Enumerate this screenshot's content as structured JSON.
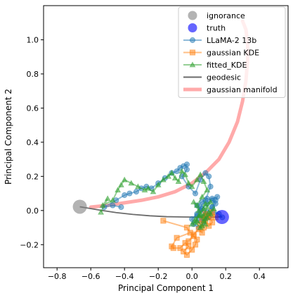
{
  "chart_data": {
    "type": "line",
    "xlabel": "Principal Component 1",
    "ylabel": "Principal Component 2",
    "xlim": [
      -0.88,
      0.57
    ],
    "ylim": [
      -0.335,
      1.2
    ],
    "xticks": [
      -0.8,
      -0.6,
      -0.4,
      -0.2,
      0.0,
      0.2,
      0.4
    ],
    "xtick_labels": [
      "−0.8",
      "−0.6",
      "−0.4",
      "−0.2",
      "0.0",
      "0.2",
      "0.4"
    ],
    "yticks": [
      -0.2,
      0.0,
      0.2,
      0.4,
      0.6,
      0.8,
      1.0
    ],
    "ytick_labels": [
      "−0.2",
      "0.0",
      "0.2",
      "0.4",
      "0.6",
      "0.8",
      "1.0"
    ],
    "legend_position": "top-right",
    "grid": false,
    "points": [
      {
        "name": "ignorance",
        "x": -0.665,
        "y": 0.022,
        "color": "#808080"
      },
      {
        "name": "truth",
        "x": 0.178,
        "y": -0.038,
        "color": "#0000ff"
      }
    ],
    "series": [
      {
        "name": "LLaMA-2 13b",
        "color": "#1f77b4",
        "marker": "circle",
        "x": [
          -0.42,
          -0.47,
          -0.52,
          -0.45,
          -0.4,
          -0.37,
          -0.33,
          -0.3,
          -0.27,
          -0.24,
          -0.2,
          -0.16,
          -0.12,
          -0.09,
          -0.07,
          -0.05,
          -0.03,
          -0.03,
          -0.06,
          -0.02,
          0.02,
          0.05,
          0.08,
          0.1,
          0.11,
          0.08,
          0.05,
          0.03,
          0.07,
          0.1,
          0.12,
          0.14,
          0.15,
          0.12,
          0.09,
          0.06,
          0.03,
          0.0,
          0.01,
          0.04,
          0.07,
          0.1,
          0.08,
          0.05,
          0.03,
          0.06,
          0.09,
          0.12,
          0.14,
          0.12,
          0.09,
          0.06,
          0.04,
          0.07,
          0.1,
          0.13,
          0.16,
          0.18
        ],
        "y": [
          0.02,
          0.03,
          0.02,
          0.06,
          0.09,
          0.1,
          0.11,
          0.13,
          0.14,
          0.13,
          0.16,
          0.19,
          0.22,
          0.23,
          0.25,
          0.26,
          0.27,
          0.24,
          0.2,
          0.14,
          0.1,
          0.18,
          0.22,
          0.2,
          0.14,
          0.06,
          0.02,
          -0.03,
          -0.06,
          -0.04,
          0.02,
          0.06,
          0.08,
          0.07,
          0.04,
          0.01,
          -0.02,
          -0.05,
          -0.08,
          -0.1,
          -0.07,
          -0.04,
          -0.02,
          0.0,
          0.03,
          0.05,
          0.07,
          0.06,
          0.04,
          0.02,
          -0.01,
          -0.04,
          -0.06,
          -0.05,
          -0.03,
          -0.01,
          -0.02,
          -0.04
        ]
      },
      {
        "name": "gaussian KDE",
        "color": "#ff7f0e",
        "marker": "square",
        "x": [
          -0.17,
          -0.03,
          -0.01,
          -0.09,
          -0.12,
          -0.11,
          -0.07,
          -0.04,
          -0.02,
          -0.05,
          -0.03,
          0.0,
          0.02,
          0.03,
          0.01,
          -0.02,
          0.01,
          0.04,
          0.06,
          0.07,
          0.05,
          0.08,
          0.1,
          0.12,
          0.11,
          0.08,
          0.06,
          0.09,
          0.12,
          0.14
        ],
        "y": [
          -0.06,
          -0.1,
          -0.13,
          -0.16,
          -0.21,
          -0.22,
          -0.22,
          -0.19,
          -0.21,
          -0.24,
          -0.26,
          -0.23,
          -0.2,
          -0.17,
          -0.15,
          -0.18,
          -0.14,
          -0.11,
          -0.13,
          -0.1,
          -0.08,
          -0.06,
          -0.09,
          -0.07,
          -0.04,
          -0.02,
          -0.05,
          -0.03,
          -0.01,
          -0.04
        ]
      },
      {
        "name": "fitted_KDE",
        "color": "#2ca02c",
        "marker": "triangle",
        "x": [
          -0.54,
          -0.5,
          -0.53,
          -0.47,
          -0.44,
          -0.42,
          -0.4,
          -0.36,
          -0.32,
          -0.28,
          -0.26,
          -0.23,
          -0.2,
          -0.17,
          -0.14,
          -0.12,
          -0.1,
          -0.08,
          -0.06,
          -0.04,
          -0.02,
          0.0,
          0.03,
          0.05,
          0.07,
          0.09,
          0.06,
          0.03,
          0.01,
          0.04,
          0.07,
          0.09,
          0.11,
          0.08,
          0.05,
          0.02,
          0.0,
          0.03,
          0.06,
          0.09,
          0.07,
          0.04,
          0.02,
          0.05,
          0.08,
          0.11,
          0.13,
          0.1,
          0.07,
          0.05,
          0.08
        ],
        "y": [
          -0.01,
          0.07,
          0.03,
          0.06,
          0.12,
          0.15,
          0.18,
          0.16,
          0.14,
          0.12,
          0.13,
          0.11,
          0.15,
          0.18,
          0.2,
          0.22,
          0.19,
          0.17,
          0.23,
          0.21,
          0.16,
          0.14,
          0.18,
          0.21,
          0.17,
          0.12,
          0.08,
          0.03,
          0.05,
          0.0,
          -0.03,
          0.02,
          0.05,
          0.04,
          -0.02,
          -0.05,
          -0.08,
          -0.06,
          -0.09,
          -0.04,
          0.01,
          -0.03,
          -0.07,
          -0.1,
          -0.05,
          -0.02,
          0.01,
          -0.01,
          -0.06,
          -0.03,
          -0.08
        ]
      },
      {
        "name": "geodesic",
        "color": "#6b6b6b",
        "marker": "none",
        "x": [
          -0.665,
          -0.55,
          -0.45,
          -0.35,
          -0.25,
          -0.15,
          -0.05,
          0.05,
          0.12,
          0.178
        ],
        "y": [
          0.022,
          0.003,
          -0.012,
          -0.023,
          -0.031,
          -0.036,
          -0.038,
          -0.039,
          -0.039,
          -0.038
        ]
      },
      {
        "name": "gaussian manifold",
        "color": "#ffaaaa",
        "marker": "none",
        "x": [
          -0.6,
          -0.5,
          -0.4,
          -0.3,
          -0.2,
          -0.1,
          0.0,
          0.08,
          0.16,
          0.22,
          0.27,
          0.3,
          0.32,
          0.33,
          0.33,
          0.32,
          0.3
        ],
        "y": [
          0.02,
          0.03,
          0.045,
          0.06,
          0.08,
          0.11,
          0.16,
          0.22,
          0.3,
          0.4,
          0.52,
          0.64,
          0.76,
          0.88,
          0.98,
          1.06,
          1.11
        ]
      }
    ]
  }
}
